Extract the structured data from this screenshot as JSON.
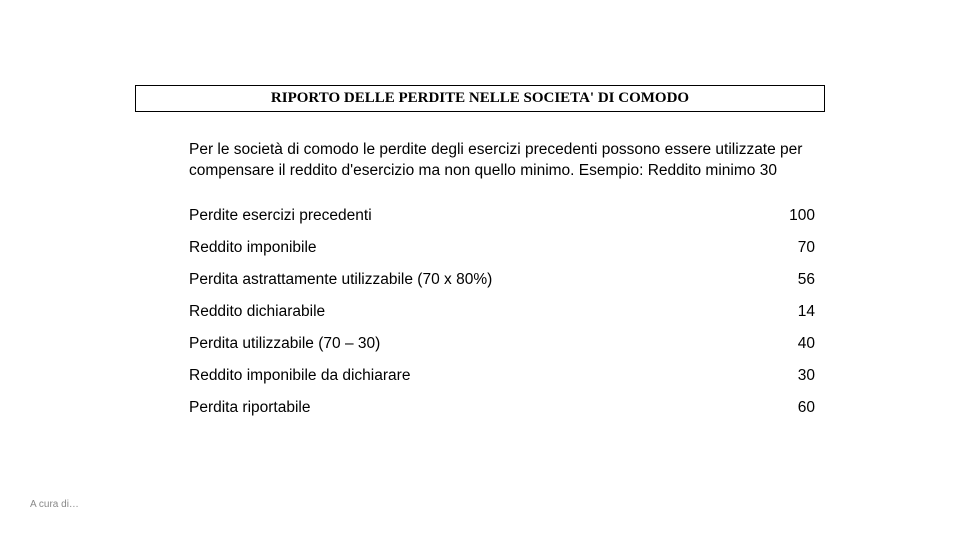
{
  "title": "RIPORTO DELLE PERDITE NELLE SOCIETA' DI COMODO",
  "description": "Per le società di comodo le perdite degli esercizi precedenti possono essere utilizzate per compensare il reddito d'esercizio ma non quello minimo. Esempio: Reddito minimo 30",
  "rows": [
    {
      "label": "Perdite esercizi precedenti",
      "value": "100"
    },
    {
      "label": "Reddito imponibile",
      "value": "70"
    },
    {
      "label": "Perdita astrattamente utilizzabile (70 x 80%)",
      "value": "56"
    },
    {
      "label": "Reddito dichiarabile",
      "value": "14"
    },
    {
      "label": "Perdita utilizzabile (70 – 30)",
      "value": "40"
    },
    {
      "label": "Reddito imponibile da dichiarare",
      "value": "30"
    },
    {
      "label": "Perdita riportabile",
      "value": "60"
    }
  ],
  "footer": "A cura di…",
  "style": {
    "background_color": "#ffffff",
    "text_color": "#000000",
    "footer_color": "#888888",
    "title_font": "Times New Roman",
    "body_font": "Arial",
    "title_fontsize": 15,
    "body_fontsize": 15.5,
    "footer_fontsize": 10,
    "border_color": "#000000",
    "border_width": 1
  }
}
